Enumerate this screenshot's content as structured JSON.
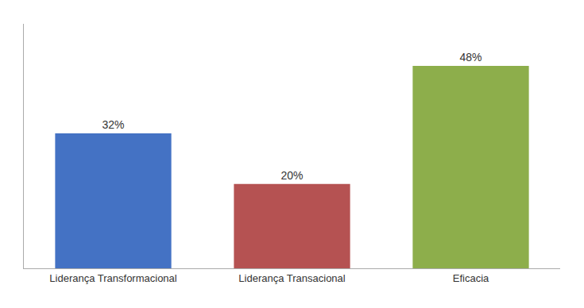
{
  "chart_data": {
    "type": "bar",
    "categories": [
      "Liderança Transformacional",
      "Liderança Transacional",
      "Eficacia"
    ],
    "values": [
      32,
      20,
      48
    ],
    "value_labels": [
      "32%",
      "20%",
      "48%"
    ],
    "colors": [
      "#4472C4",
      "#B55252",
      "#8DAE4B"
    ],
    "ylim": [
      0,
      58
    ],
    "data_labels": true,
    "tick_labels": "x",
    "grid": false
  }
}
